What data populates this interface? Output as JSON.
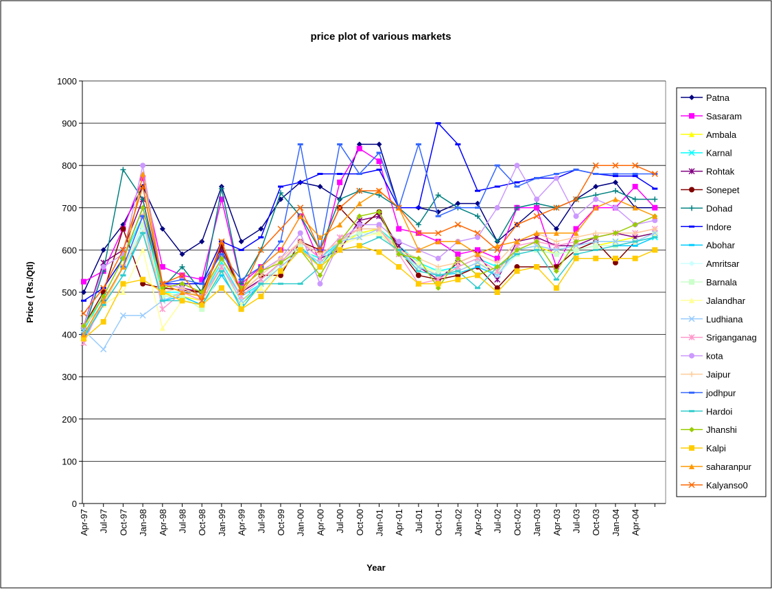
{
  "chart_data": {
    "type": "line",
    "title": "price plot of various markets",
    "x_label": "Year",
    "y_label": "Price ( Rs./Qtl)",
    "categories": [
      "Apr-97",
      "Jul-97",
      "Oct-97",
      "Jan-98",
      "Apr-98",
      "Jul-98",
      "Oct-98",
      "Jan-99",
      "Apr-99",
      "Jul-99",
      "Oct-99",
      "Jan-00",
      "Apr-00",
      "Jul-00",
      "Oct-00",
      "Jan-01",
      "Apr-01",
      "Jul-01",
      "Oct-01",
      "Jan-02",
      "Apr-02",
      "Jul-02",
      "Oct-02",
      "Jan-03",
      "Apr-03",
      "Jul-03",
      "Oct-03",
      "Jan-04",
      "Apr-04",
      null
    ],
    "ylim": [
      0,
      1000
    ],
    "yticks": [
      0,
      100,
      200,
      300,
      400,
      500,
      600,
      700,
      800,
      900,
      1000
    ],
    "grid": true,
    "legend": "right",
    "series": [
      {
        "name": "Patna",
        "color": "#000080",
        "marker": "diamond",
        "values": [
          500,
          600,
          660,
          750,
          650,
          590,
          620,
          750,
          620,
          650,
          720,
          760,
          750,
          720,
          850,
          850,
          700,
          700,
          690,
          710,
          710,
          620,
          660,
          700,
          650,
          720,
          750,
          760,
          700,
          700
        ]
      },
      {
        "name": "Sasaram",
        "color": "#FF00FF",
        "marker": "square",
        "values": [
          525,
          550,
          650,
          770,
          560,
          540,
          530,
          720,
          520,
          560,
          600,
          680,
          570,
          760,
          840,
          810,
          650,
          640,
          620,
          590,
          600,
          580,
          700,
          700,
          560,
          650,
          700,
          700,
          750,
          700
        ]
      },
      {
        "name": "Ambala",
        "color": "#FFFF00",
        "marker": "triangle",
        "values": [
          400,
          470,
          560,
          680,
          500,
          490,
          480,
          560,
          480,
          510,
          560,
          600,
          570,
          610,
          640,
          650,
          590,
          560,
          540,
          550,
          570,
          550,
          600,
          610,
          590,
          600,
          610,
          620,
          630,
          640
        ]
      },
      {
        "name": "Karnal",
        "color": "#00FFFF",
        "marker": "x",
        "values": [
          410,
          490,
          580,
          680,
          500,
          500,
          490,
          570,
          490,
          520,
          560,
          600,
          580,
          620,
          650,
          650,
          610,
          570,
          550,
          560,
          580,
          560,
          600,
          610,
          600,
          610,
          620,
          620,
          620,
          630
        ]
      },
      {
        "name": "Rohtak",
        "color": "#800080",
        "marker": "star",
        "values": [
          420,
          570,
          600,
          720,
          520,
          510,
          500,
          600,
          500,
          530,
          570,
          620,
          580,
          600,
          670,
          680,
          610,
          560,
          530,
          570,
          590,
          530,
          620,
          630,
          610,
          610,
          630,
          640,
          630,
          640
        ]
      },
      {
        "name": "Sonepet",
        "color": "#800000",
        "marker": "circle",
        "values": [
          420,
          500,
          650,
          520,
          510,
          505,
          500,
          610,
          500,
          540,
          540,
          620,
          600,
          700,
          650,
          690,
          600,
          540,
          530,
          540,
          560,
          510,
          560,
          560,
          560,
          600,
          620,
          570,
          620,
          640
        ]
      },
      {
        "name": "Dohad",
        "color": "#008080",
        "marker": "plus",
        "values": [
          410,
          550,
          790,
          720,
          510,
          560,
          500,
          745,
          520,
          600,
          735,
          680,
          600,
          720,
          740,
          730,
          700,
          660,
          730,
          700,
          680,
          620,
          700,
          710,
          700,
          720,
          730,
          740,
          720,
          720
        ]
      },
      {
        "name": "Indore",
        "color": "#0000FF",
        "marker": "dash",
        "values": [
          480,
          510,
          580,
          700,
          520,
          520,
          520,
          620,
          600,
          630,
          750,
          760,
          780,
          780,
          780,
          790,
          700,
          700,
          900,
          850,
          740,
          750,
          760,
          770,
          770,
          790,
          780,
          775,
          775,
          745
        ]
      },
      {
        "name": "Abohar",
        "color": "#00CCFF",
        "marker": "dash",
        "values": [
          390,
          470,
          540,
          650,
          480,
          490,
          470,
          540,
          470,
          520,
          570,
          610,
          560,
          620,
          640,
          640,
          600,
          560,
          540,
          545,
          560,
          540,
          590,
          600,
          590,
          600,
          610,
          610,
          610,
          630
        ]
      },
      {
        "name": "Amritsar",
        "color": "#CCFFFF",
        "marker": "diamond",
        "values": [
          400,
          480,
          560,
          650,
          490,
          500,
          480,
          560,
          480,
          520,
          570,
          610,
          570,
          620,
          630,
          640,
          600,
          560,
          540,
          550,
          570,
          540,
          590,
          600,
          590,
          600,
          610,
          610,
          620,
          640
        ]
      },
      {
        "name": "Barnala",
        "color": "#CCFFCC",
        "marker": "square",
        "values": [
          395,
          470,
          560,
          660,
          490,
          490,
          460,
          550,
          460,
          520,
          570,
          610,
          570,
          620,
          640,
          640,
          590,
          560,
          550,
          550,
          570,
          550,
          590,
          600,
          590,
          600,
          610,
          610,
          620,
          640
        ]
      },
      {
        "name": "Jalandhar",
        "color": "#FFFF99",
        "marker": "triangle",
        "values": [
          400,
          470,
          500,
          600,
          415,
          480,
          470,
          560,
          470,
          510,
          560,
          600,
          560,
          610,
          630,
          640,
          600,
          570,
          540,
          550,
          570,
          550,
          600,
          610,
          600,
          610,
          620,
          620,
          620,
          640
        ]
      },
      {
        "name": "Ludhiana",
        "color": "#99CCFF",
        "marker": "x",
        "values": [
          410,
          365,
          445,
          445,
          480,
          500,
          490,
          560,
          480,
          520,
          560,
          600,
          570,
          620,
          630,
          650,
          600,
          560,
          540,
          550,
          570,
          540,
          600,
          610,
          600,
          610,
          620,
          620,
          620,
          640
        ]
      },
      {
        "name": "Sriganganag",
        "color": "#FF99CC",
        "marker": "star",
        "values": [
          380,
          480,
          560,
          680,
          460,
          500,
          480,
          560,
          490,
          530,
          570,
          620,
          580,
          630,
          650,
          650,
          590,
          520,
          530,
          560,
          580,
          550,
          610,
          620,
          610,
          620,
          630,
          640,
          640,
          650
        ]
      },
      {
        "name": "kota",
        "color": "#CC99FF",
        "marker": "circle",
        "values": [
          420,
          560,
          590,
          800,
          520,
          510,
          490,
          580,
          510,
          550,
          580,
          640,
          520,
          620,
          660,
          660,
          620,
          600,
          580,
          620,
          630,
          700,
          800,
          720,
          770,
          680,
          720,
          700,
          660,
          670
        ]
      },
      {
        "name": "Jaipur",
        "color": "#FFCC99",
        "marker": "plus",
        "values": [
          420,
          470,
          560,
          640,
          500,
          510,
          490,
          580,
          500,
          540,
          580,
          620,
          590,
          620,
          650,
          650,
          600,
          580,
          560,
          570,
          590,
          570,
          620,
          640,
          620,
          630,
          640,
          640,
          640,
          650
        ]
      },
      {
        "name": "jodhpur",
        "color": "#3366FF",
        "marker": "dash",
        "values": [
          400,
          480,
          560,
          680,
          520,
          530,
          520,
          590,
          530,
          560,
          620,
          850,
          600,
          850,
          780,
          830,
          700,
          850,
          680,
          700,
          700,
          800,
          750,
          770,
          780,
          790,
          780,
          780,
          780,
          780
        ]
      },
      {
        "name": "Hardoi",
        "color": "#33CCCC",
        "marker": "dash",
        "values": [
          395,
          470,
          540,
          640,
          480,
          480,
          470,
          550,
          460,
          520,
          520,
          520,
          560,
          600,
          610,
          630,
          600,
          550,
          540,
          550,
          510,
          560,
          590,
          600,
          530,
          590,
          600,
          610,
          620,
          630
        ]
      },
      {
        "name": "Jhanshi",
        "color": "#99CC00",
        "marker": "diamond",
        "values": [
          420,
          490,
          580,
          700,
          510,
          520,
          500,
          580,
          510,
          550,
          570,
          600,
          540,
          620,
          680,
          690,
          590,
          580,
          510,
          580,
          540,
          560,
          600,
          620,
          550,
          620,
          630,
          640,
          660,
          680
        ]
      },
      {
        "name": "Kalpi",
        "color": "#FFCC00",
        "marker": "square",
        "values": [
          390,
          430,
          520,
          530,
          500,
          480,
          470,
          510,
          460,
          490,
          550,
          600,
          560,
          600,
          610,
          595,
          560,
          520,
          520,
          530,
          540,
          500,
          550,
          560,
          510,
          580,
          580,
          580,
          580,
          600
        ]
      },
      {
        "name": "saharanpur",
        "color": "#FF9900",
        "marker": "triangle",
        "values": [
          400,
          480,
          560,
          780,
          520,
          500,
          490,
          620,
          500,
          560,
          600,
          680,
          630,
          660,
          710,
          740,
          700,
          600,
          620,
          620,
          590,
          610,
          620,
          640,
          640,
          640,
          700,
          720,
          700,
          680
        ]
      },
      {
        "name": "Kalyanso0",
        "color": "#FF6600",
        "marker": "x",
        "values": [
          450,
          510,
          600,
          750,
          520,
          540,
          480,
          620,
          500,
          600,
          650,
          700,
          600,
          700,
          740,
          740,
          700,
          640,
          640,
          660,
          640,
          600,
          660,
          680,
          700,
          720,
          800,
          800,
          800,
          780
        ]
      }
    ]
  }
}
